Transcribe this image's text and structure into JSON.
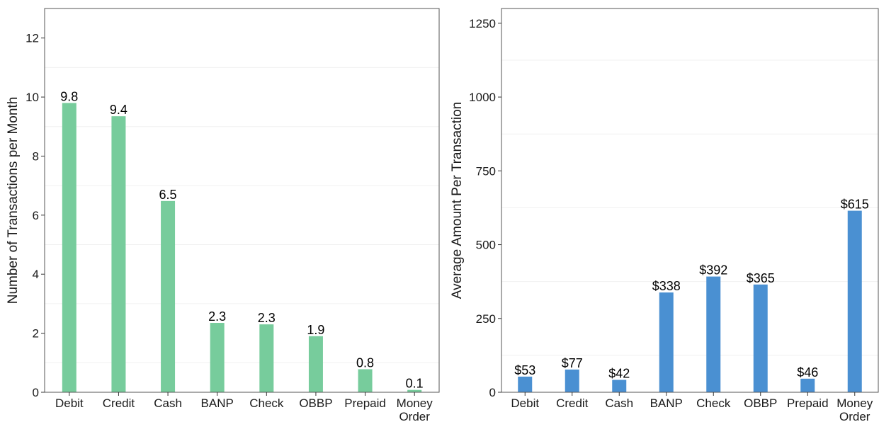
{
  "chart_data": [
    {
      "type": "bar",
      "categories": [
        "Debit",
        "Credit",
        "Cash",
        "BANP",
        "Check",
        "OBBP",
        "Prepaid",
        "Money\nOrder"
      ],
      "values": [
        9.8,
        9.4,
        6.5,
        2.3,
        2.3,
        1.9,
        0.8,
        0.1
      ],
      "data_labels": [
        "9.8",
        "9.4",
        "6.5",
        "2.3",
        "2.3",
        "1.9",
        "0.8",
        "0.1"
      ],
      "bar_values": [
        9.8,
        9.35,
        6.48,
        2.35,
        2.3,
        1.9,
        0.78,
        0.08
      ],
      "title": "",
      "xlabel": "",
      "ylabel": "Number of Transactions per Month",
      "ylim": [
        0,
        13
      ],
      "yticks": [
        0,
        2,
        4,
        6,
        8,
        10,
        12
      ],
      "ytick_labels": [
        "0",
        "2",
        "4",
        "6",
        "8",
        "10",
        "12"
      ],
      "minor_grid": [
        1,
        3,
        5,
        7,
        9,
        11
      ],
      "grid": true,
      "legend": "none",
      "color": "#77cc9c"
    },
    {
      "type": "bar",
      "categories": [
        "Debit",
        "Credit",
        "Cash",
        "BANP",
        "Check",
        "OBBP",
        "Prepaid",
        "Money\nOrder"
      ],
      "values": [
        53,
        77,
        42,
        338,
        392,
        365,
        46,
        615
      ],
      "data_labels": [
        "$53",
        "$77",
        "$42",
        "$338",
        "$392",
        "$365",
        "$46",
        "$615"
      ],
      "bar_values": [
        53,
        77,
        42,
        338,
        392,
        365,
        46,
        615
      ],
      "title": "",
      "xlabel": "",
      "ylabel": "Average Amount Per Transaction",
      "ylim": [
        0,
        1300
      ],
      "yticks": [
        0,
        250,
        500,
        750,
        1000,
        1250
      ],
      "ytick_labels": [
        "0",
        "250",
        "500",
        "750",
        "1000",
        "1250"
      ],
      "minor_grid": [
        125,
        375,
        625,
        875,
        1125
      ],
      "grid": true,
      "legend": "none",
      "color": "#4a90d2"
    }
  ]
}
